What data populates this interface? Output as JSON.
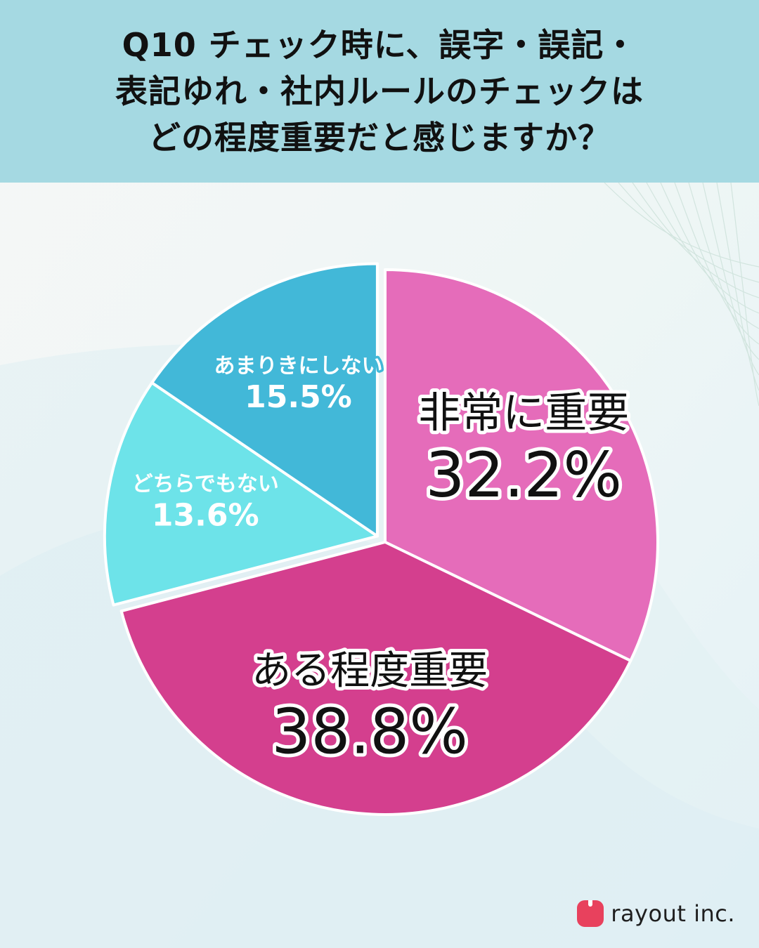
{
  "header": {
    "title_lines": [
      "Q10 チェック時に、誤字・誤記・",
      "表記ゆれ・社内ルールのチェックは",
      "どの程度重要だと感じますか？"
    ]
  },
  "chart_data": {
    "type": "pie",
    "title": "Q10 チェック時に、誤字・誤記・表記ゆれ・社内ルールのチェックはどの程度重要だと感じますか？",
    "unit": "%",
    "slices": [
      {
        "label": "非常に重要",
        "value": 32.2,
        "value_text": "32.2%",
        "color": "#e56cba",
        "exploded": false
      },
      {
        "label": "ある程度重要",
        "value": 38.8,
        "value_text": "38.8%",
        "color": "#d43f8e",
        "exploded": false
      },
      {
        "label": "どちらでもない",
        "value": 13.6,
        "value_text": "13.6%",
        "color": "#6de3e9",
        "exploded": true
      },
      {
        "label": "あまりきにしない",
        "value": 15.5,
        "value_text": "15.5%",
        "color": "#42b8d8",
        "exploded": true
      }
    ],
    "legend": "none"
  },
  "brand": {
    "name": "rayout inc.",
    "color": "#e8415d"
  }
}
